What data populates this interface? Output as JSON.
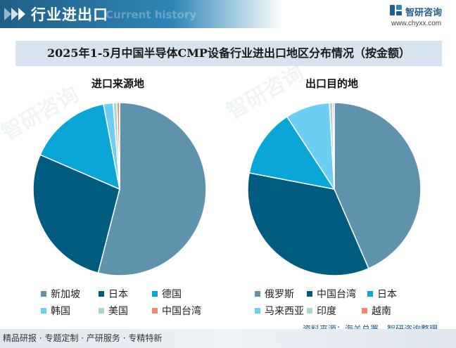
{
  "header": {
    "title": "行业进出口",
    "ghost_text": "Current history",
    "brand_name": "智研咨询",
    "brand_url": "www.chyxx.com"
  },
  "footer": {
    "left_text": "精品研报 · 专题定制 · 产研服务 · 专精特新",
    "source_text": "资料来源：海关总署、智研咨询整理"
  },
  "colors": {
    "header_accent": "#1f5f86",
    "title_box": "#d7e4f0"
  },
  "chart_data": [
    {
      "type": "pie",
      "title": "进口来源地",
      "suptitle": "2025年1-5月中国半导体CMP设备行业进出口地区分布情况（按金额）",
      "start": "12 o'clock, clockwise",
      "slices": [
        {
          "label": "新加坡",
          "value": 54.0,
          "color": "#5f93ad"
        },
        {
          "label": "日本",
          "value": 27.5,
          "color": "#005c7f"
        },
        {
          "label": "德国",
          "value": 15.5,
          "color": "#0aa6d8"
        },
        {
          "label": "韩国",
          "value": 1.8,
          "color": "#6ccef3"
        },
        {
          "label": "美国",
          "value": 0.7,
          "color": "#a8d9cf"
        },
        {
          "label": "中国台湾",
          "value": 0.5,
          "color": "#f08a6a"
        }
      ],
      "unit": "%"
    },
    {
      "type": "pie",
      "title": "出口目的地",
      "start": "12 o'clock, clockwise",
      "slices": [
        {
          "label": "俄罗斯",
          "value": 43.5,
          "color": "#5f93ad"
        },
        {
          "label": "中国台湾",
          "value": 34.5,
          "color": "#005c7f"
        },
        {
          "label": "日本",
          "value": 12.8,
          "color": "#0aa6d8"
        },
        {
          "label": "马来西亚",
          "value": 8.3,
          "color": "#6ccef3"
        },
        {
          "label": "印度",
          "value": 0.6,
          "color": "#a8d9cf"
        },
        {
          "label": "越南",
          "value": 0.3,
          "color": "#f08a6a"
        }
      ],
      "unit": "%"
    }
  ]
}
